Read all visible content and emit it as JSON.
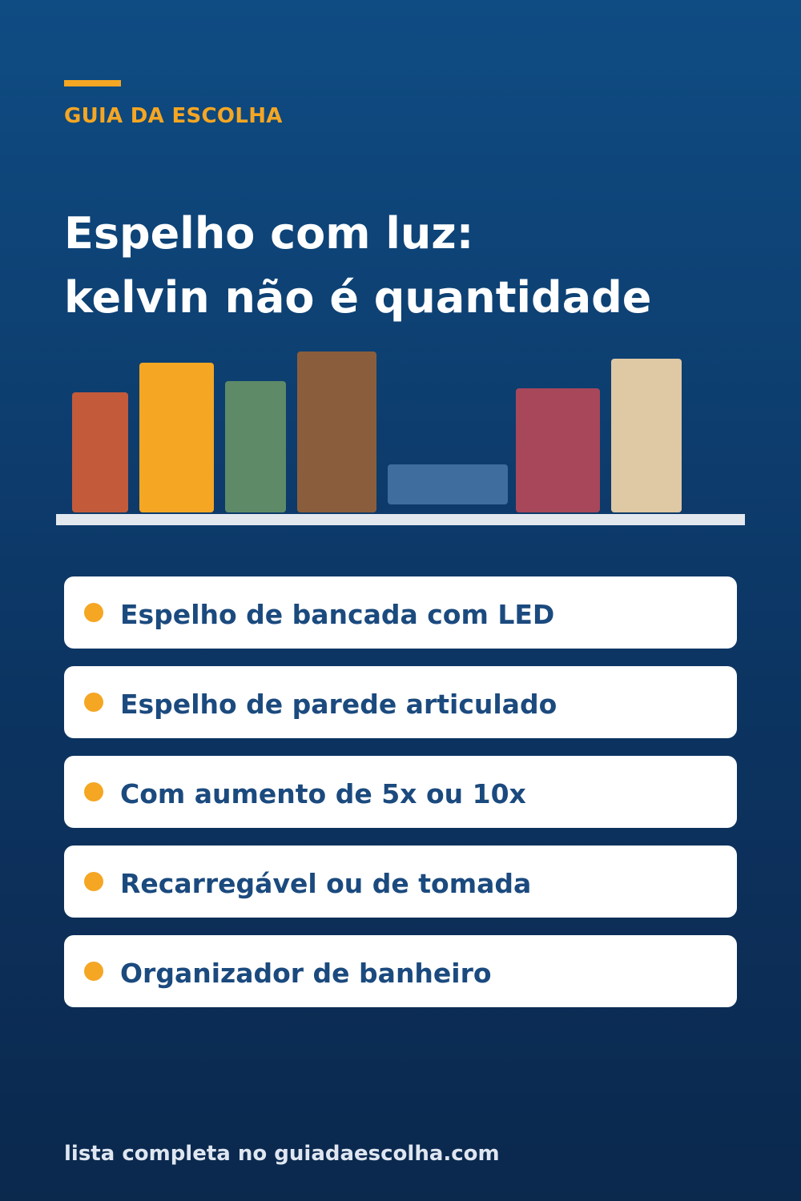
{
  "brand": "GUIA DA ESCOLHA",
  "title": {
    "lines": [
      "Espelho com luz:",
      "kelvin não é quantidade"
    ]
  },
  "items": [
    "Espelho de bancada com LED",
    "Espelho de parede articulado",
    "Com aumento de 5x ou 10x",
    "Recarregável ou de tomada",
    "Organizador de banheiro"
  ],
  "footer": "lista completa no guiadaescolha.com"
}
